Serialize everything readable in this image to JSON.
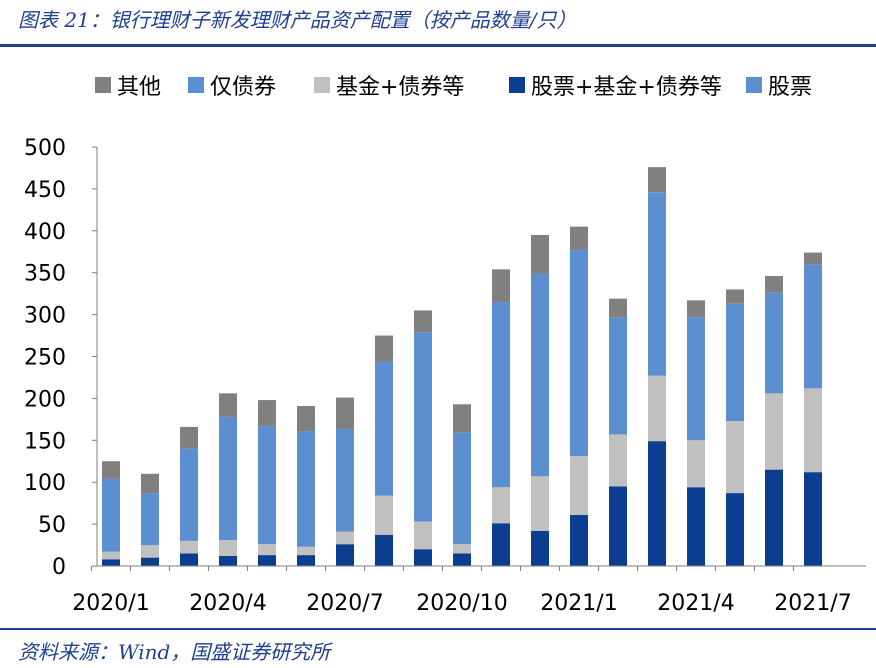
{
  "figure": {
    "title": "图表 21：银行理财子新发理财产品资产配置（按产品数量/只）",
    "source": "资料来源：Wind，国盛证券研究所"
  },
  "chart_data": {
    "type": "bar",
    "stacked": true,
    "categories": [
      "2020/1",
      "2020/2",
      "2020/3",
      "2020/4",
      "2020/5",
      "2020/6",
      "2020/7",
      "2020/8",
      "2020/9",
      "2020/10",
      "2020/11",
      "2020/12",
      "2021/1",
      "2021/2",
      "2021/3",
      "2021/4",
      "2021/5",
      "2021/6",
      "2021/7"
    ],
    "x_tick_labels": [
      "2020/1",
      "2020/4",
      "2020/7",
      "2020/10",
      "2021/1",
      "2021/4",
      "2021/7"
    ],
    "ylim": [
      0,
      500
    ],
    "yticks": [
      0,
      50,
      100,
      150,
      200,
      250,
      300,
      350,
      400,
      450,
      500
    ],
    "grid": false,
    "legend_position": "top",
    "series": [
      {
        "name": "股票",
        "color": "#5b8fd0",
        "values": [
          0,
          0,
          0,
          0,
          0,
          0,
          0,
          0,
          0,
          0,
          0,
          0,
          0,
          0,
          0,
          0,
          0,
          0,
          0
        ]
      },
      {
        "name": "股票+基金+债券等",
        "color": "#0b3d91",
        "values": [
          8,
          10,
          15,
          12,
          13,
          13,
          26,
          37,
          20,
          15,
          51,
          42,
          61,
          95,
          149,
          94,
          87,
          115,
          112
        ]
      },
      {
        "name": "基金+债券等",
        "color": "#c0c0c0",
        "values": [
          9,
          15,
          15,
          19,
          13,
          10,
          15,
          47,
          33,
          11,
          43,
          65,
          70,
          62,
          78,
          56,
          86,
          91,
          100
        ]
      },
      {
        "name": "仅债券",
        "color": "#5b8fd0",
        "values": [
          87,
          62,
          110,
          147,
          141,
          138,
          123,
          160,
          226,
          133,
          221,
          242,
          246,
          140,
          219,
          147,
          140,
          120,
          148
        ]
      },
      {
        "name": "其他",
        "color": "#808080",
        "values": [
          21,
          23,
          26,
          28,
          31,
          30,
          37,
          31,
          26,
          34,
          39,
          46,
          28,
          22,
          30,
          20,
          17,
          20,
          14
        ]
      }
    ],
    "legend_order": [
      "其他",
      "仅债券",
      "基金+债券等",
      "股票+基金+债券等",
      "股票"
    ]
  }
}
